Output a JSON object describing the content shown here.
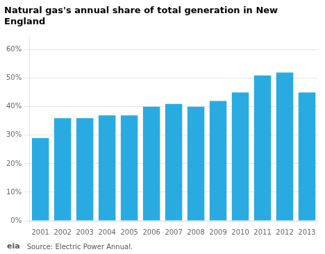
{
  "chart_data": {
    "type": "bar",
    "title": "Natural gas's annual share of total generation in New\nEngland",
    "categories": [
      "2001",
      "2002",
      "2003",
      "2004",
      "2005",
      "2006",
      "2007",
      "2008",
      "2009",
      "2010",
      "2011",
      "2012",
      "2013"
    ],
    "values": [
      0.29,
      0.36,
      0.36,
      0.37,
      0.37,
      0.4,
      0.41,
      0.4,
      0.42,
      0.45,
      0.51,
      0.52,
      0.45
    ],
    "color": "#29ABE2",
    "ylim": [
      0,
      0.65
    ],
    "yticks": [
      {
        "value": 0.0,
        "label": "0%"
      },
      {
        "value": 0.1,
        "label": "10%"
      },
      {
        "value": 0.2,
        "label": "20%"
      },
      {
        "value": 0.3,
        "label": "30%"
      },
      {
        "value": 0.4,
        "label": "40%"
      },
      {
        "value": 0.5,
        "label": "50%"
      },
      {
        "value": 0.6,
        "label": "60%"
      }
    ],
    "grid": true,
    "annotations": [
      "eia",
      "Source: Electric Power Annual."
    ]
  }
}
